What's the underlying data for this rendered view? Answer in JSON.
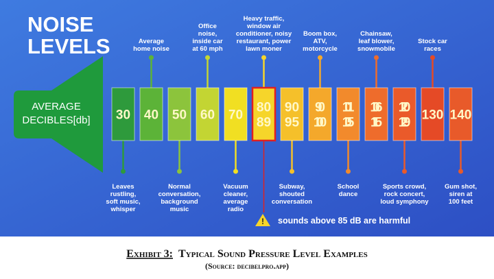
{
  "title": [
    "NOISE",
    "LEVELS"
  ],
  "scale_label": [
    "AVERAGE",
    "DECIBLES[db]"
  ],
  "boxes": [
    {
      "lines": [
        "30"
      ],
      "color": "#2e9a3c",
      "below": [
        "Leaves",
        "rustling,",
        "soft music,",
        "whisper"
      ]
    },
    {
      "lines": [
        "40"
      ],
      "color": "#5cb338",
      "above": [
        "Average",
        "home noise"
      ]
    },
    {
      "lines": [
        "50"
      ],
      "color": "#8cc43c",
      "below": [
        "Normal",
        "conversation,",
        "background",
        "music"
      ]
    },
    {
      "lines": [
        "60"
      ],
      "color": "#c3d533",
      "above": [
        "Office",
        "noise,",
        "inside car",
        "at 60 mph"
      ]
    },
    {
      "lines": [
        "70"
      ],
      "color": "#f1df22",
      "below": [
        "Vacuum",
        "cleaner,",
        "average",
        "radio"
      ]
    },
    {
      "lines": [
        "80",
        "89"
      ],
      "color": "#f6d52a",
      "above": [
        "Heavy traffic,",
        "window air",
        "conditioner, noisy",
        "restaurant, power",
        "lawn moner"
      ]
    },
    {
      "lines": [
        "90",
        "95"
      ],
      "color": "#f5c02a",
      "below": [
        "Subway,",
        "shouted",
        "conversation"
      ]
    },
    {
      "lines": [
        "90",
        "100"
      ],
      "color": "#f4a82b",
      "above": [
        "Boom box,",
        "ATV,",
        "motorcycle"
      ]
    },
    {
      "lines": [
        "101",
        "105"
      ],
      "color": "#f28a2c",
      "below": [
        "School",
        "dance"
      ]
    },
    {
      "lines": [
        "106",
        "115"
      ],
      "color": "#ee6c2c",
      "above": [
        "Chainsaw,",
        "leaf blower,",
        "snowmobile"
      ]
    },
    {
      "lines": [
        "120",
        "129"
      ],
      "color": "#ea5a2a",
      "below": [
        "Sports crowd,",
        "rock concert,",
        "loud symphony"
      ]
    },
    {
      "lines": [
        "130"
      ],
      "color": "#e54a26",
      "above": [
        "Stock car",
        "races"
      ]
    },
    {
      "lines": [
        "140"
      ],
      "color": "#e85a2a",
      "below": [
        "Gum shot,",
        "siren at",
        "100 feet"
      ]
    }
  ],
  "warning": "sounds above 85 dB are harmful",
  "caption": {
    "label": "Exhibit 3:",
    "text": "Typical Sound Pressure Level Examples",
    "source": "(Source:  decibelpro.app)"
  }
}
